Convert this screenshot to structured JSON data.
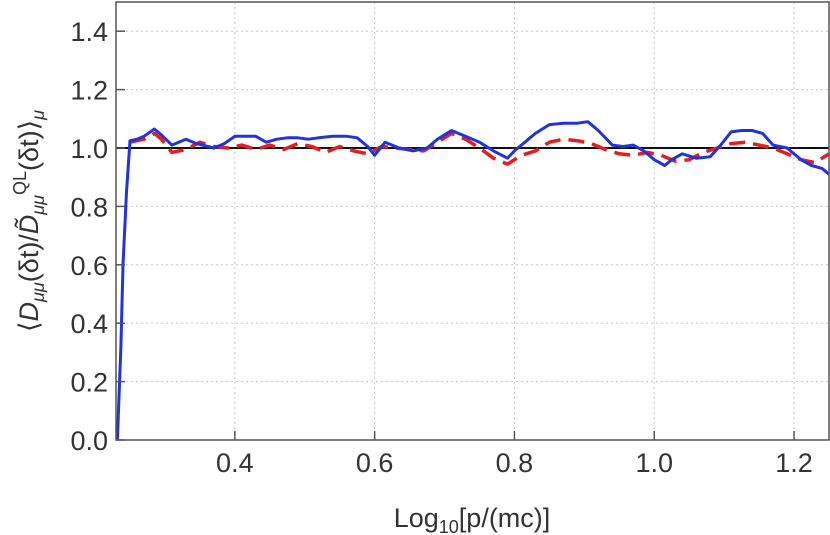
{
  "chart_data": {
    "type": "line",
    "xlabel": "Log10[p/(mc)]",
    "ylabel": "⟨Dμμ(δt)/D̃μμQL(δt)⟩μ",
    "xlim": [
      0.23,
      1.25
    ],
    "ylim": [
      0.0,
      1.5
    ],
    "xticks": [
      "0.4",
      "0.6",
      "0.8",
      "1.0",
      "1.2"
    ],
    "yticks": [
      "0.0",
      "0.2",
      "0.4",
      "0.6",
      "0.8",
      "1.0",
      "1.2",
      "1.4"
    ],
    "grid": true,
    "reference_line": 1.0,
    "series": [
      {
        "color": "#2233dd",
        "style": "solid",
        "x": [
          0.232,
          0.237,
          0.24,
          0.245,
          0.25,
          0.26,
          0.27,
          0.285,
          0.295,
          0.31,
          0.33,
          0.345,
          0.37,
          0.385,
          0.4,
          0.415,
          0.43,
          0.445,
          0.46,
          0.475,
          0.49,
          0.505,
          0.52,
          0.54,
          0.56,
          0.575,
          0.59,
          0.6,
          0.615,
          0.635,
          0.655,
          0.675,
          0.69,
          0.71,
          0.73,
          0.75,
          0.77,
          0.79,
          0.8,
          0.815,
          0.83,
          0.85,
          0.87,
          0.89,
          0.905,
          0.92,
          0.94,
          0.955,
          0.97,
          0.985,
          1.0,
          1.015,
          1.025,
          1.04,
          1.06,
          1.08,
          1.095,
          1.11,
          1.125,
          1.14,
          1.155,
          1.17,
          1.19,
          1.21,
          1.225,
          1.24,
          1.25
        ],
        "y": [
          0.0,
          0.32,
          0.6,
          0.85,
          1.025,
          1.03,
          1.04,
          1.065,
          1.045,
          1.01,
          1.03,
          1.015,
          1.0,
          1.015,
          1.04,
          1.04,
          1.04,
          1.02,
          1.03,
          1.035,
          1.035,
          1.03,
          1.035,
          1.04,
          1.04,
          1.035,
          1.005,
          0.975,
          1.02,
          1.0,
          0.99,
          1.0,
          1.03,
          1.06,
          1.04,
          1.02,
          0.99,
          0.965,
          0.99,
          1.02,
          1.05,
          1.08,
          1.085,
          1.085,
          1.09,
          1.06,
          1.01,
          1.005,
          1.01,
          0.99,
          0.96,
          0.94,
          0.96,
          0.98,
          0.965,
          0.97,
          1.01,
          1.055,
          1.06,
          1.06,
          1.05,
          1.01,
          1.0,
          0.96,
          0.94,
          0.93,
          0.91
        ]
      },
      {
        "color": "#e81c1c",
        "style": "dashed",
        "x": [
          0.25,
          0.27,
          0.285,
          0.295,
          0.31,
          0.33,
          0.35,
          0.37,
          0.39,
          0.41,
          0.43,
          0.45,
          0.47,
          0.49,
          0.51,
          0.53,
          0.55,
          0.57,
          0.59,
          0.61,
          0.63,
          0.65,
          0.67,
          0.69,
          0.71,
          0.73,
          0.75,
          0.77,
          0.79,
          0.81,
          0.83,
          0.85,
          0.87,
          0.89,
          0.91,
          0.93,
          0.95,
          0.97,
          0.99,
          1.01,
          1.03,
          1.05,
          1.07,
          1.09,
          1.11,
          1.13,
          1.15,
          1.17,
          1.19,
          1.21,
          1.23,
          1.25
        ],
        "y": [
          1.02,
          1.03,
          1.05,
          1.03,
          0.985,
          0.995,
          1.02,
          1.005,
          1.0,
          1.01,
          0.995,
          1.01,
          0.995,
          1.015,
          1.005,
          0.985,
          1.005,
          0.99,
          0.98,
          1.005,
          1.0,
          0.995,
          0.99,
          1.02,
          1.05,
          1.03,
          1.0,
          0.965,
          0.945,
          0.975,
          0.99,
          1.02,
          1.03,
          1.025,
          1.015,
          0.995,
          0.98,
          0.975,
          0.985,
          0.975,
          0.955,
          0.96,
          0.985,
          1.0,
          1.015,
          1.02,
          1.01,
          1.0,
          0.98,
          0.96,
          0.95,
          0.98
        ]
      }
    ]
  }
}
